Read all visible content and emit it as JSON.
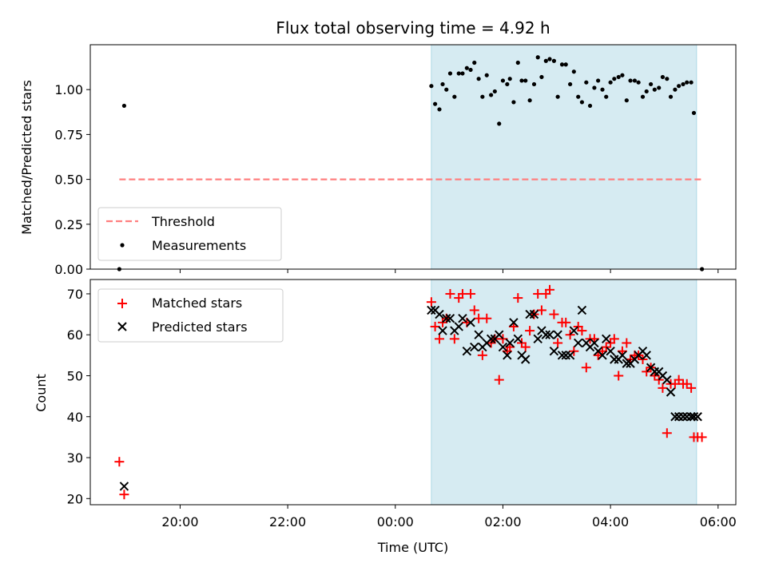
{
  "chart_data": [
    {
      "type": "scatter",
      "title": "Flux total observing time = 4.92 h",
      "xlabel": "",
      "ylabel": "Matched/Predicted stars",
      "ylim": [
        0.0,
        1.25
      ],
      "yticks": [
        "0.00",
        "0.25",
        "0.50",
        "0.75",
        "1.00"
      ],
      "xlim": [
        18.33,
        30.33
      ],
      "shaded_interval": [
        24.67,
        29.6
      ],
      "legend": {
        "placement": "lower-left",
        "entries": [
          "Threshold",
          "Measurements"
        ]
      },
      "series": [
        {
          "name": "Threshold",
          "kind": "dashed-line",
          "color": "#ff7f7f",
          "x": [
            18.87,
            29.7
          ],
          "y": [
            0.5,
            0.5
          ]
        },
        {
          "name": "Measurements",
          "kind": "dots",
          "color": "#000000",
          "x": [
            18.87,
            18.96,
            24.67,
            24.74,
            24.82,
            24.88,
            24.95,
            25.02,
            25.1,
            25.18,
            25.25,
            25.33,
            25.4,
            25.47,
            25.55,
            25.62,
            25.7,
            25.78,
            25.85,
            25.93,
            26.0,
            26.08,
            26.13,
            26.2,
            26.28,
            26.35,
            26.42,
            26.5,
            26.58,
            26.65,
            26.72,
            26.8,
            26.87,
            26.95,
            27.02,
            27.1,
            27.17,
            27.25,
            27.32,
            27.4,
            27.47,
            27.55,
            27.62,
            27.7,
            27.77,
            27.85,
            27.92,
            28.0,
            28.07,
            28.15,
            28.22,
            28.3,
            28.37,
            28.45,
            28.52,
            28.6,
            28.67,
            28.75,
            28.82,
            28.9,
            28.97,
            29.05,
            29.12,
            29.2,
            29.27,
            29.35,
            29.42,
            29.5,
            29.55,
            29.7
          ],
          "y": [
            0.0,
            0.91,
            1.02,
            0.92,
            0.89,
            1.03,
            1.0,
            1.09,
            0.96,
            1.09,
            1.09,
            1.12,
            1.11,
            1.15,
            1.06,
            0.96,
            1.08,
            0.97,
            0.99,
            0.81,
            1.05,
            1.03,
            1.06,
            0.93,
            1.15,
            1.05,
            1.05,
            0.94,
            1.03,
            1.18,
            1.07,
            1.16,
            1.17,
            1.16,
            0.96,
            1.14,
            1.14,
            1.03,
            1.1,
            0.96,
            0.93,
            1.04,
            0.91,
            1.01,
            1.05,
            1.0,
            0.96,
            1.04,
            1.06,
            1.07,
            1.08,
            0.94,
            1.05,
            1.05,
            1.04,
            0.96,
            0.99,
            1.03,
            1.0,
            1.01,
            1.07,
            1.06,
            0.96,
            1.0,
            1.02,
            1.03,
            1.04,
            1.04,
            0.87,
            0.0
          ]
        }
      ]
    },
    {
      "type": "scatter",
      "title": "",
      "xlabel": "Time (UTC)",
      "ylabel": "Count",
      "ylim": [
        18.5,
        73.5
      ],
      "yticks": [
        "20",
        "30",
        "40",
        "50",
        "60",
        "70"
      ],
      "xlim": [
        18.33,
        30.33
      ],
      "xticks": [
        {
          "value": 20,
          "label": "20:00"
        },
        {
          "value": 22,
          "label": "22:00"
        },
        {
          "value": 24,
          "label": "00:00"
        },
        {
          "value": 26,
          "label": "02:00"
        },
        {
          "value": 28,
          "label": "04:00"
        },
        {
          "value": 30,
          "label": "06:00"
        }
      ],
      "shaded_interval": [
        24.67,
        29.6
      ],
      "legend": {
        "placement": "top-left",
        "entries": [
          "Matched stars",
          "Predicted stars"
        ]
      },
      "series": [
        {
          "name": "Matched stars",
          "kind": "plus",
          "color": "#ff0000",
          "x": [
            18.87,
            18.96,
            24.67,
            24.74,
            24.82,
            24.88,
            24.95,
            25.02,
            25.1,
            25.18,
            25.25,
            25.33,
            25.4,
            25.47,
            25.55,
            25.62,
            25.7,
            25.78,
            25.85,
            25.93,
            26.0,
            26.08,
            26.13,
            26.2,
            26.28,
            26.35,
            26.42,
            26.5,
            26.58,
            26.65,
            26.72,
            26.8,
            26.87,
            26.95,
            27.02,
            27.1,
            27.17,
            27.25,
            27.32,
            27.4,
            27.47,
            27.55,
            27.62,
            27.7,
            27.77,
            27.85,
            27.92,
            28.0,
            28.07,
            28.15,
            28.22,
            28.3,
            28.37,
            28.45,
            28.52,
            28.6,
            28.67,
            28.75,
            28.82,
            28.9,
            28.97,
            29.05,
            29.12,
            29.2,
            29.27,
            29.35,
            29.42,
            29.5,
            29.55,
            29.62,
            29.7
          ],
          "y": [
            29,
            21,
            68,
            62,
            59,
            63,
            64,
            70,
            59,
            69,
            70,
            63,
            70,
            66,
            64,
            55,
            64,
            58,
            59,
            49,
            59,
            56,
            57,
            62,
            69,
            58,
            57,
            61,
            65,
            70,
            66,
            70,
            71,
            65,
            58,
            63,
            63,
            60,
            56,
            62,
            61,
            52,
            59,
            59,
            55,
            56,
            57,
            58,
            59,
            50,
            56,
            58,
            54,
            55,
            55,
            54,
            51,
            52,
            50,
            49,
            47,
            36,
            48,
            48,
            49,
            48,
            48,
            47,
            35,
            35,
            35
          ]
        },
        {
          "name": "Predicted stars",
          "kind": "x",
          "color": "#000000",
          "x": [
            18.96,
            24.67,
            24.74,
            24.82,
            24.88,
            24.95,
            25.02,
            25.1,
            25.18,
            25.25,
            25.33,
            25.4,
            25.47,
            25.55,
            25.62,
            25.7,
            25.78,
            25.85,
            25.93,
            26.0,
            26.08,
            26.13,
            26.2,
            26.28,
            26.35,
            26.42,
            26.5,
            26.58,
            26.65,
            26.72,
            26.8,
            26.87,
            26.95,
            27.02,
            27.1,
            27.17,
            27.25,
            27.32,
            27.4,
            27.47,
            27.55,
            27.62,
            27.7,
            27.77,
            27.85,
            27.92,
            28.0,
            28.07,
            28.15,
            28.22,
            28.3,
            28.37,
            28.45,
            28.52,
            28.6,
            28.67,
            28.75,
            28.82,
            28.9,
            28.97,
            29.05,
            29.12,
            29.2,
            29.27,
            29.35,
            29.42,
            29.5,
            29.55,
            29.62
          ],
          "y": [
            23,
            66,
            66,
            65,
            61,
            64,
            64,
            61,
            62,
            64,
            56,
            63,
            57,
            60,
            57,
            58,
            59,
            59,
            60,
            57,
            55,
            58,
            63,
            59,
            55,
            54,
            65,
            65,
            59,
            61,
            60,
            60,
            56,
            60,
            55,
            55,
            55,
            61,
            58,
            66,
            58,
            57,
            58,
            56,
            55,
            59,
            56,
            54,
            54,
            55,
            53,
            53,
            54,
            55,
            56,
            55,
            52,
            51,
            51,
            50,
            49,
            46,
            40,
            40,
            40,
            40,
            40,
            40,
            40
          ]
        }
      ]
    }
  ]
}
